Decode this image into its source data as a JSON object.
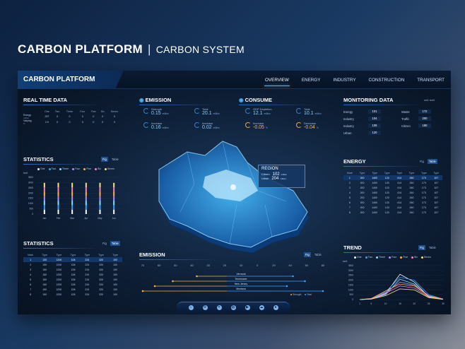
{
  "header": {
    "title": "CARBON PLATFORM",
    "separator": "|",
    "subtitle": "CARBON SYSTEM"
  },
  "dashboard": {
    "brand": "CARBON PLATFORM",
    "nav": [
      {
        "label": "OVERVIEW",
        "active": true
      },
      {
        "label": "ENERGY"
      },
      {
        "label": "INDUSTRY"
      },
      {
        "label": "CONSTRUCTION"
      },
      {
        "label": "TRANSPORT"
      }
    ],
    "realtime": {
      "title": "REAL TIME DATA",
      "cols": [
        "One",
        "Two",
        "Three",
        "Four",
        "Five",
        "Six",
        "Seven"
      ],
      "rows": [
        {
          "label": "Energy",
          "unit": "million",
          "vals": [
            "257",
            "0",
            "0",
            "0",
            "0",
            "0",
            "0"
          ]
        },
        {
          "label": "Varying",
          "unit": "%",
          "vals": [
            "2.9",
            "0",
            "0",
            "0",
            "0",
            "0",
            "0"
          ]
        }
      ]
    },
    "stats1": {
      "title": "STATISTICS",
      "toggle": [
        "Fig",
        "Table"
      ],
      "legend": [
        "One",
        "Two",
        "Three",
        "Four",
        "Five",
        "Six",
        "Seven"
      ],
      "yunit": "ton/t",
      "yticks": [
        "3500",
        "3000",
        "2500",
        "2000",
        "1500",
        "1000",
        "500",
        "0"
      ],
      "months": [
        "Jan",
        "Feb",
        "Mar",
        "Apr",
        "May",
        "Jun"
      ]
    },
    "stats2": {
      "title": "STATISTICS",
      "toggle": [
        "Fig",
        "Table"
      ],
      "headers": [
        "Mark",
        "Type",
        "Type",
        "Type",
        "Type",
        "Type",
        "Type"
      ],
      "rows": [
        [
          "1",
          "130",
          "1200",
          "108",
          "224",
          "320",
          "100"
        ],
        [
          "2",
          "150",
          "1200",
          "108",
          "224",
          "320",
          "100"
        ],
        [
          "3",
          "150",
          "1200",
          "108",
          "224",
          "320",
          "100"
        ],
        [
          "4",
          "150",
          "1200",
          "108",
          "224",
          "320",
          "100"
        ],
        [
          "5",
          "150",
          "1200",
          "108",
          "224",
          "320",
          "100"
        ],
        [
          "6",
          "150",
          "1200",
          "108",
          "224",
          "320",
          "100"
        ],
        [
          "7",
          "150",
          "1200",
          "108",
          "224",
          "320",
          "100"
        ],
        [
          "8",
          "150",
          "1200",
          "108",
          "224",
          "320",
          "100"
        ]
      ]
    },
    "emission": {
      "title": "EMISSION",
      "items": [
        {
          "label": "Strength",
          "value": "0.15",
          "unit": "million"
        },
        {
          "label": "Total",
          "value": "20.1",
          "unit": "million"
        },
        {
          "label": "Increase",
          "value": "0.16",
          "unit": "million"
        },
        {
          "label": "Increase",
          "value": "0.02",
          "unit": "million"
        }
      ]
    },
    "consume": {
      "title": "CONSUME",
      "items": [
        {
          "label": "GDP Depletion",
          "value": "12.1",
          "unit": "million"
        },
        {
          "label": "Total",
          "value": "10.1",
          "unit": "million"
        },
        {
          "label": "Increase",
          "value": "-0.05",
          "unit": "%"
        },
        {
          "label": "Decrease",
          "value": "-0.04",
          "unit": "%"
        }
      ]
    },
    "region": {
      "title": "REGION",
      "citizen_label": "Citizen",
      "citizen": "102",
      "citizen_unit": "million",
      "urban_label": "Urban",
      "urban": "204",
      "urban_unit": "million"
    },
    "monitoring": {
      "title": "MONITORING DATA",
      "unit": "unit: ton/t",
      "left": [
        {
          "label": "Energy",
          "value": "101"
        },
        {
          "label": "Industry",
          "value": "104"
        },
        {
          "label": "Industry",
          "value": "108"
        },
        {
          "label": "Urban",
          "value": "120"
        }
      ],
      "right": [
        {
          "label": "Waste",
          "value": "172"
        },
        {
          "label": "Traffic",
          "value": "200"
        },
        {
          "label": "Citizen",
          "value": "180"
        }
      ]
    },
    "energy": {
      "title": "ENERGY",
      "toggle": [
        "Fig",
        "Table"
      ],
      "headers": [
        "Mark",
        "Type",
        "Type",
        "Type",
        "Type",
        "Type",
        "Type",
        "Type"
      ],
      "rows": [
        [
          "1",
          "200",
          "1400",
          "120",
          "414",
          "260",
          "173",
          "107"
        ],
        [
          "2",
          "200",
          "1400",
          "120",
          "414",
          "260",
          "173",
          "107"
        ],
        [
          "3",
          "200",
          "1400",
          "120",
          "414",
          "260",
          "173",
          "107"
        ],
        [
          "4",
          "200",
          "1400",
          "120",
          "414",
          "260",
          "173",
          "107"
        ],
        [
          "5",
          "200",
          "1400",
          "120",
          "414",
          "260",
          "173",
          "107"
        ],
        [
          "6",
          "200",
          "1400",
          "120",
          "414",
          "260",
          "173",
          "107"
        ],
        [
          "7",
          "200",
          "1400",
          "120",
          "414",
          "260",
          "173",
          "107"
        ],
        [
          "8",
          "200",
          "1400",
          "120",
          "414",
          "260",
          "173",
          "107"
        ]
      ]
    },
    "emission2": {
      "title": "EMISSION",
      "toggle": [
        "Fig",
        "Table"
      ],
      "ticks": [
        "70",
        "60",
        "50",
        "40",
        "30",
        "20",
        "10",
        "0",
        "20",
        "40",
        "60",
        "80"
      ],
      "states": [
        "Vermont",
        "Tennessee",
        "New Jersey",
        "Montana"
      ],
      "legend": [
        "Strength",
        "Total"
      ]
    },
    "trend": {
      "title": "TREND",
      "toggle": [
        "Fig",
        "Table"
      ],
      "legend": [
        "One",
        "Two",
        "Three",
        "Four",
        "Five",
        "Six",
        "Seven"
      ],
      "yunit": "ton/t",
      "yticks": [
        "3500",
        "3000",
        "2500",
        "2000",
        "1500",
        "1000",
        "500",
        "0"
      ],
      "xticks": [
        "1",
        "5",
        "10",
        "15",
        "20",
        "25",
        "30"
      ]
    },
    "toolbar": {
      "icons": [
        "home-icon",
        "settings-icon",
        "close-icon",
        "document-icon",
        "media-icon",
        "cloud-icon",
        "users-icon"
      ]
    }
  },
  "chart_data": [
    {
      "type": "bar",
      "title": "STATISTICS",
      "categories": [
        "Jan",
        "Feb",
        "Mar",
        "Apr",
        "May",
        "Jun"
      ],
      "ylim": [
        0,
        3500
      ],
      "ylabel": "ton/t",
      "series": [
        {
          "name": "One",
          "values": [
            500,
            500,
            500,
            500,
            500,
            500
          ]
        },
        {
          "name": "Two",
          "values": [
            500,
            500,
            500,
            500,
            500,
            500
          ]
        },
        {
          "name": "Three",
          "values": [
            500,
            500,
            500,
            500,
            500,
            500
          ]
        },
        {
          "name": "Four",
          "values": [
            500,
            500,
            500,
            500,
            500,
            500
          ]
        },
        {
          "name": "Five",
          "values": [
            500,
            500,
            500,
            500,
            500,
            500
          ]
        },
        {
          "name": "Six",
          "values": [
            500,
            500,
            500,
            500,
            500,
            500
          ]
        },
        {
          "name": "Seven",
          "values": [
            500,
            500,
            500,
            500,
            500,
            500
          ]
        }
      ],
      "colors": [
        "#ffffff",
        "#3aa0ff",
        "#7be0ff",
        "#b58cff",
        "#ffb040",
        "#ff7fbf",
        "#ffe07a"
      ]
    },
    {
      "type": "line",
      "title": "TREND",
      "x": [
        1,
        5,
        10,
        15,
        20,
        25,
        30
      ],
      "ylim": [
        0,
        3500
      ],
      "ylabel": "ton/t",
      "series": [
        {
          "name": "One",
          "values": [
            0,
            80,
            600,
            2600,
            1800,
            300,
            40
          ]
        },
        {
          "name": "Two",
          "values": [
            0,
            120,
            800,
            2300,
            2000,
            500,
            60
          ]
        },
        {
          "name": "Three",
          "values": [
            0,
            60,
            500,
            2100,
            1600,
            280,
            30
          ]
        },
        {
          "name": "Four",
          "values": [
            0,
            90,
            700,
            1800,
            1500,
            400,
            50
          ]
        },
        {
          "name": "Five",
          "values": [
            0,
            100,
            900,
            1600,
            1400,
            350,
            40
          ]
        },
        {
          "name": "Six",
          "values": [
            0,
            70,
            650,
            1400,
            1200,
            250,
            30
          ]
        },
        {
          "name": "Seven",
          "values": [
            0,
            50,
            400,
            1100,
            1000,
            200,
            20
          ]
        }
      ],
      "colors": [
        "#ffffff",
        "#3aa0ff",
        "#7be0ff",
        "#b58cff",
        "#ffb040",
        "#ff7fbf",
        "#ffe07a"
      ]
    },
    {
      "type": "bar",
      "title": "EMISSION",
      "categories": [
        "Vermont",
        "Tennessee",
        "New Jersey",
        "Montana"
      ],
      "series": [
        {
          "name": "Strength",
          "values": [
            -25,
            -45,
            -60,
            -70
          ]
        },
        {
          "name": "Total",
          "values": [
            55,
            65,
            50,
            80
          ]
        }
      ],
      "xlim": [
        -70,
        80
      ],
      "colors": [
        "#ffae3a",
        "#3aa0ff"
      ]
    }
  ]
}
